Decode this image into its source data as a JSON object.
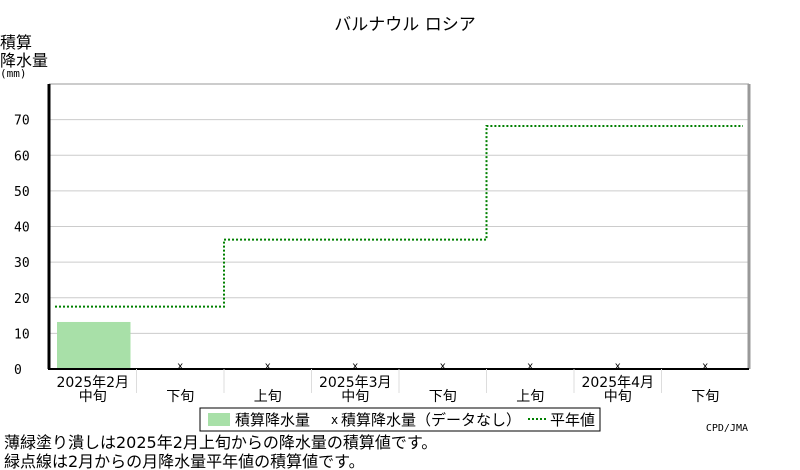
{
  "chart_data": {
    "type": "bar",
    "title": "バルナウル ロシア",
    "ylabel_lines": [
      "積算",
      "降水量",
      "(mm)"
    ],
    "ylim": [
      0,
      80
    ],
    "yticks": [
      0,
      10,
      20,
      30,
      40,
      50,
      60,
      70
    ],
    "grid": true,
    "categories": [
      "中旬",
      "下旬",
      "上旬",
      "中旬",
      "下旬",
      "上旬",
      "中旬",
      "下旬"
    ],
    "month_labels": [
      {
        "label": "2025年2月",
        "period_index": 0
      },
      {
        "label": "2025年3月",
        "period_index": 3
      },
      {
        "label": "2025年4月",
        "period_index": 6
      }
    ],
    "series": [
      {
        "name": "積算降水量",
        "kind": "bar",
        "color": "#a8e0a8",
        "values": [
          13.2,
          null,
          null,
          null,
          null,
          null,
          null,
          null
        ]
      },
      {
        "name": "積算降水量（データなし）",
        "kind": "marker",
        "symbol": "x",
        "values": [
          null,
          0,
          0,
          0,
          0,
          0,
          0,
          0
        ]
      },
      {
        "name": "平年値",
        "kind": "step",
        "color": "#008000",
        "values": [
          17.5,
          17.5,
          36.3,
          36.3,
          36.3,
          68.2,
          68.2,
          68.2
        ]
      }
    ],
    "legend_position": "bottom",
    "credit": "CPD/JMA"
  },
  "notes": [
    "薄緑塗り潰しは2025年2月上旬からの降水量の積算値です。",
    "緑点線は2月からの月降水量平年値の積算値です。"
  ]
}
